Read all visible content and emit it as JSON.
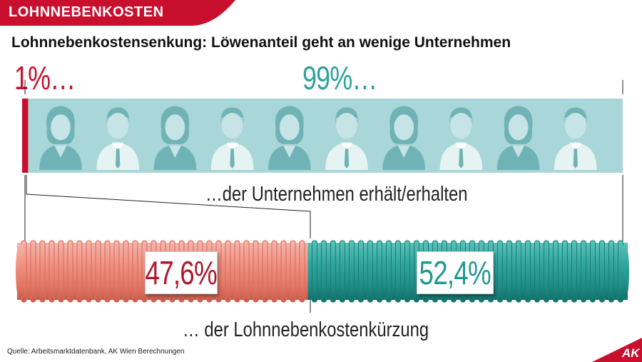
{
  "banner": {
    "topic": "LOHNNEBENKOSTEN"
  },
  "title": "Lohnnebenkostensenkung: Löwenanteil geht an wenige Unternehmen",
  "companies": {
    "small_label": "1%…",
    "large_label": "99%…",
    "caption": "…der Unternehmen erhält/erhalten"
  },
  "reduction": {
    "caption": "… der Lohnnebenkostenkürzung"
  },
  "source": "Quelle: Arbeitsmarktdatenbank, AK Wien Berechnungen",
  "logo_text": "AK",
  "colors": {
    "red": "#c8102e",
    "salmon": "#e98a7e",
    "teal": "#2aa39b",
    "light_teal": "#a9d6d8"
  },
  "icons": [
    "person-icon-female",
    "person-icon-male"
  ],
  "chart_data": [
    {
      "type": "bar",
      "orientation": "horizontal-stacked",
      "categories": [
        "Unternehmen"
      ],
      "series": [
        {
          "name": "1%",
          "values": [
            1
          ],
          "color": "#c8102e"
        },
        {
          "name": "99%",
          "values": [
            99
          ],
          "color": "#a9d6d8"
        }
      ],
      "unit": "%",
      "title": "",
      "xlabel": "…der Unternehmen erhält/erhalten",
      "ylabel": ""
    },
    {
      "type": "bar",
      "orientation": "horizontal-stacked",
      "categories": [
        "Lohnnebenkostenkürzung"
      ],
      "series": [
        {
          "name": "",
          "values": [
            47.6
          ],
          "color": "#e98a7e",
          "label": "47,6%"
        },
        {
          "name": "",
          "values": [
            52.4
          ],
          "color": "#2aa39b",
          "label": "52,4%"
        }
      ],
      "unit": "%",
      "title": "",
      "xlabel": "… der Lohnnebenkostenkürzung",
      "ylabel": ""
    }
  ]
}
